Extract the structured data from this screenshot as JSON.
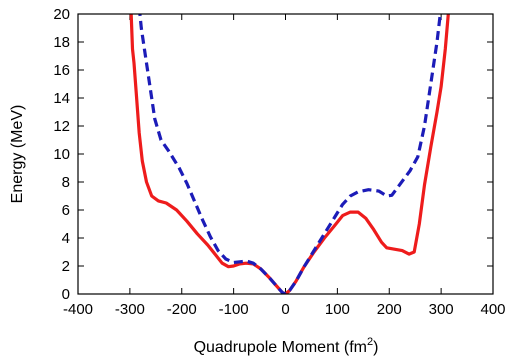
{
  "chart_data": {
    "type": "line",
    "title": "",
    "xlabel": "Quadrupole Moment",
    "xlabel_unit_prefix": "(fm",
    "xlabel_unit_exp": "2",
    "xlabel_unit_suffix": ")",
    "ylabel": "Energy (MeV)",
    "xlim": [
      -400,
      400
    ],
    "ylim": [
      0,
      20
    ],
    "xticks": [
      -400,
      -300,
      -200,
      -100,
      0,
      100,
      200,
      300,
      400
    ],
    "yticks": [
      0,
      2,
      4,
      6,
      8,
      10,
      12,
      14,
      16,
      18,
      20
    ],
    "grid": false,
    "legend": "none",
    "series": [
      {
        "style": "solid",
        "color": "#ee1c1c",
        "points": [
          [
            -298,
            20.5
          ],
          [
            -295,
            17.5
          ],
          [
            -292,
            16.5
          ],
          [
            -288,
            14.5
          ],
          [
            -282,
            11.5
          ],
          [
            -276,
            9.5
          ],
          [
            -268,
            8.0
          ],
          [
            -258,
            7.0
          ],
          [
            -245,
            6.65
          ],
          [
            -230,
            6.5
          ],
          [
            -210,
            6.0
          ],
          [
            -190,
            5.2
          ],
          [
            -170,
            4.3
          ],
          [
            -150,
            3.5
          ],
          [
            -135,
            2.8
          ],
          [
            -122,
            2.2
          ],
          [
            -110,
            1.95
          ],
          [
            -100,
            2.0
          ],
          [
            -88,
            2.15
          ],
          [
            -76,
            2.2
          ],
          [
            -62,
            2.15
          ],
          [
            -48,
            1.8
          ],
          [
            -32,
            1.2
          ],
          [
            -18,
            0.6
          ],
          [
            -6,
            0.1
          ],
          [
            0,
            0.0
          ],
          [
            8,
            0.25
          ],
          [
            20,
            0.9
          ],
          [
            35,
            1.9
          ],
          [
            55,
            3.0
          ],
          [
            75,
            4.0
          ],
          [
            95,
            4.9
          ],
          [
            110,
            5.6
          ],
          [
            125,
            5.85
          ],
          [
            140,
            5.85
          ],
          [
            155,
            5.4
          ],
          [
            170,
            4.6
          ],
          [
            185,
            3.7
          ],
          [
            195,
            3.3
          ],
          [
            210,
            3.2
          ],
          [
            225,
            3.1
          ],
          [
            238,
            2.85
          ],
          [
            248,
            3.0
          ],
          [
            258,
            5.0
          ],
          [
            268,
            7.8
          ],
          [
            280,
            10.5
          ],
          [
            292,
            13.0
          ],
          [
            300,
            14.8
          ],
          [
            308,
            17.5
          ],
          [
            315,
            20.5
          ]
        ]
      },
      {
        "style": "dashed",
        "color": "#1c1cb8",
        "points": [
          [
            -282,
            20.5
          ],
          [
            -278,
            19.0
          ],
          [
            -272,
            17.5
          ],
          [
            -262,
            15.0
          ],
          [
            -252,
            12.5
          ],
          [
            -240,
            11.0
          ],
          [
            -225,
            10.2
          ],
          [
            -205,
            9.0
          ],
          [
            -190,
            7.9
          ],
          [
            -175,
            6.6
          ],
          [
            -160,
            5.3
          ],
          [
            -145,
            4.1
          ],
          [
            -130,
            3.1
          ],
          [
            -115,
            2.5
          ],
          [
            -100,
            2.25
          ],
          [
            -88,
            2.3
          ],
          [
            -75,
            2.35
          ],
          [
            -62,
            2.2
          ],
          [
            -48,
            1.8
          ],
          [
            -32,
            1.2
          ],
          [
            -18,
            0.6
          ],
          [
            -6,
            0.1
          ],
          [
            0,
            0.0
          ],
          [
            8,
            0.25
          ],
          [
            20,
            0.9
          ],
          [
            35,
            1.9
          ],
          [
            55,
            3.1
          ],
          [
            75,
            4.3
          ],
          [
            95,
            5.5
          ],
          [
            110,
            6.4
          ],
          [
            125,
            7.0
          ],
          [
            140,
            7.3
          ],
          [
            160,
            7.45
          ],
          [
            180,
            7.35
          ],
          [
            195,
            7.0
          ],
          [
            205,
            7.05
          ],
          [
            220,
            7.8
          ],
          [
            240,
            8.8
          ],
          [
            255,
            9.8
          ],
          [
            268,
            12.0
          ],
          [
            282,
            15.5
          ],
          [
            292,
            18.0
          ],
          [
            300,
            20.5
          ]
        ]
      }
    ]
  }
}
